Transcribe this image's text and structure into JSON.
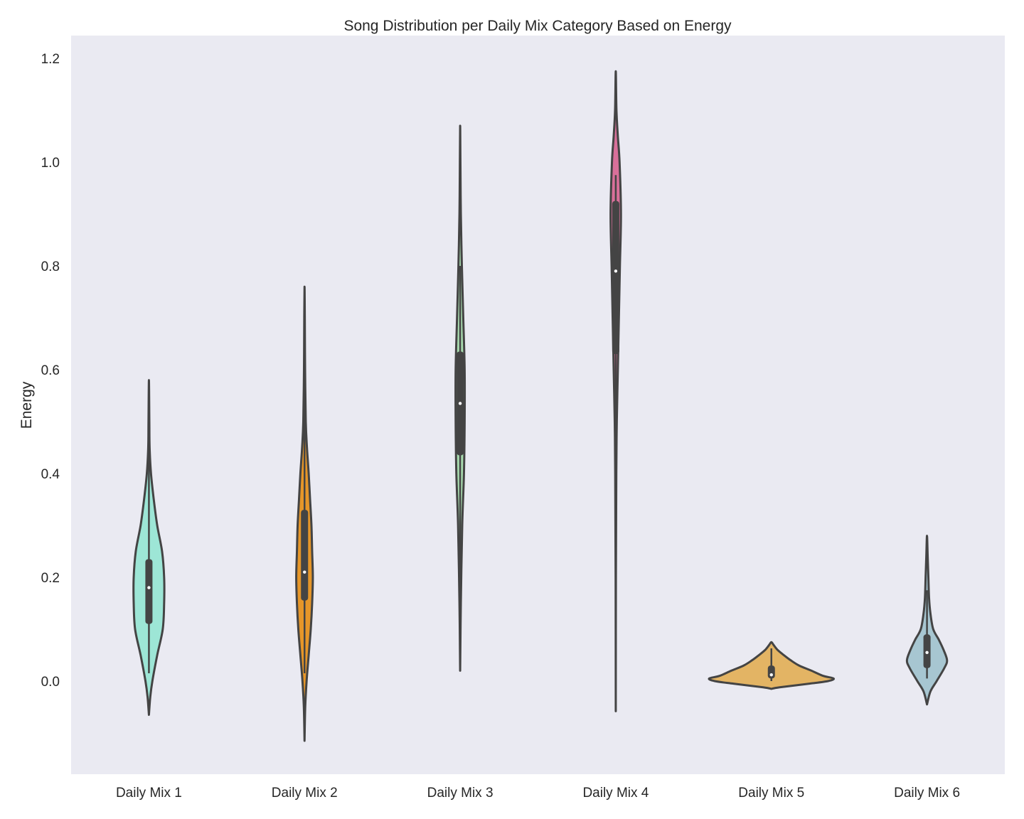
{
  "chart_data": {
    "type": "violin",
    "title": "Song Distribution per Daily Mix Category Based on Energy",
    "xlabel": "",
    "ylabel": "Energy",
    "ylim": [
      -0.18,
      1.25
    ],
    "yticks": [
      "0.0",
      "0.2",
      "0.4",
      "0.6",
      "0.8",
      "1.0",
      "1.2"
    ],
    "ytick_values": [
      0.0,
      0.2,
      0.4,
      0.6,
      0.8,
      1.0,
      1.2
    ],
    "grid": false,
    "background_color": "#eaeaf2",
    "categories": [
      "Daily Mix 1",
      "Daily Mix 2",
      "Daily Mix 3",
      "Daily Mix 4",
      "Daily Mix 5",
      "Daily Mix 6"
    ],
    "series": [
      {
        "category": "Daily Mix 1",
        "color": "#9de6d6",
        "min": -0.065,
        "max": 0.58,
        "q1": 0.11,
        "median": 0.18,
        "q3": 0.235,
        "whisker_low": 0.015,
        "whisker_high": 0.5,
        "density": [
          [
            -0.065,
            0
          ],
          [
            -0.03,
            0.02
          ],
          [
            0.0,
            0.05
          ],
          [
            0.05,
            0.12
          ],
          [
            0.1,
            0.2
          ],
          [
            0.15,
            0.22
          ],
          [
            0.2,
            0.22
          ],
          [
            0.25,
            0.19
          ],
          [
            0.3,
            0.12
          ],
          [
            0.35,
            0.07
          ],
          [
            0.4,
            0.03
          ],
          [
            0.45,
            0.01
          ],
          [
            0.5,
            0.006
          ],
          [
            0.58,
            0
          ]
        ]
      },
      {
        "category": "Daily Mix 2",
        "color": "#e69629",
        "min": -0.115,
        "max": 0.76,
        "q1": 0.155,
        "median": 0.21,
        "q3": 0.33,
        "whisker_low": 0.015,
        "whisker_high": 0.56,
        "density": [
          [
            -0.115,
            0
          ],
          [
            -0.05,
            0.01
          ],
          [
            0.0,
            0.03
          ],
          [
            0.05,
            0.06
          ],
          [
            0.1,
            0.09
          ],
          [
            0.15,
            0.11
          ],
          [
            0.2,
            0.12
          ],
          [
            0.25,
            0.11
          ],
          [
            0.3,
            0.1
          ],
          [
            0.35,
            0.08
          ],
          [
            0.4,
            0.06
          ],
          [
            0.45,
            0.035
          ],
          [
            0.5,
            0.018
          ],
          [
            0.6,
            0.008
          ],
          [
            0.7,
            0.004
          ],
          [
            0.76,
            0
          ]
        ]
      },
      {
        "category": "Daily Mix 3",
        "color": "#a9dcaf",
        "min": 0.02,
        "max": 1.07,
        "q1": 0.435,
        "median": 0.535,
        "q3": 0.635,
        "whisker_low": 0.18,
        "whisker_high": 0.8,
        "density": [
          [
            0.02,
            0
          ],
          [
            0.15,
            0.01
          ],
          [
            0.3,
            0.03
          ],
          [
            0.4,
            0.055
          ],
          [
            0.5,
            0.065
          ],
          [
            0.6,
            0.065
          ],
          [
            0.7,
            0.045
          ],
          [
            0.8,
            0.025
          ],
          [
            0.9,
            0.01
          ],
          [
            1.0,
            0.004
          ],
          [
            1.07,
            0
          ]
        ]
      },
      {
        "category": "Daily Mix 4",
        "color": "#d9709a",
        "min": -0.058,
        "max": 1.175,
        "q1": 0.63,
        "median": 0.79,
        "q3": 0.925,
        "whisker_low": 0.36,
        "whisker_high": 0.975,
        "density": [
          [
            -0.058,
            0
          ],
          [
            0.2,
            0.002
          ],
          [
            0.4,
            0.008
          ],
          [
            0.5,
            0.015
          ],
          [
            0.6,
            0.03
          ],
          [
            0.7,
            0.045
          ],
          [
            0.8,
            0.06
          ],
          [
            0.9,
            0.075
          ],
          [
            1.0,
            0.055
          ],
          [
            1.05,
            0.03
          ],
          [
            1.1,
            0.01
          ],
          [
            1.175,
            0
          ]
        ]
      },
      {
        "category": "Daily Mix 5",
        "color": "#e3b464",
        "min": -0.015,
        "max": 0.075,
        "q1": 0.005,
        "median": 0.012,
        "q3": 0.03,
        "whisker_low": 0.0,
        "whisker_high": 0.063,
        "density": [
          [
            -0.015,
            0
          ],
          [
            -0.012,
            0.12
          ],
          [
            -0.005,
            0.55
          ],
          [
            0.0,
            0.82
          ],
          [
            0.005,
            0.9
          ],
          [
            0.01,
            0.75
          ],
          [
            0.02,
            0.58
          ],
          [
            0.03,
            0.4
          ],
          [
            0.04,
            0.28
          ],
          [
            0.05,
            0.18
          ],
          [
            0.06,
            0.09
          ],
          [
            0.07,
            0.03
          ],
          [
            0.075,
            0
          ]
        ]
      },
      {
        "category": "Daily Mix 6",
        "color": "#a7c6d1",
        "min": -0.045,
        "max": 0.28,
        "q1": 0.025,
        "median": 0.055,
        "q3": 0.09,
        "whisker_low": 0.005,
        "whisker_high": 0.175,
        "density": [
          [
            -0.045,
            0
          ],
          [
            -0.02,
            0.05
          ],
          [
            0.0,
            0.14
          ],
          [
            0.025,
            0.25
          ],
          [
            0.04,
            0.29
          ],
          [
            0.06,
            0.24
          ],
          [
            0.08,
            0.17
          ],
          [
            0.1,
            0.09
          ],
          [
            0.13,
            0.05
          ],
          [
            0.16,
            0.03
          ],
          [
            0.2,
            0.02
          ],
          [
            0.24,
            0.01
          ],
          [
            0.28,
            0
          ]
        ]
      }
    ]
  }
}
